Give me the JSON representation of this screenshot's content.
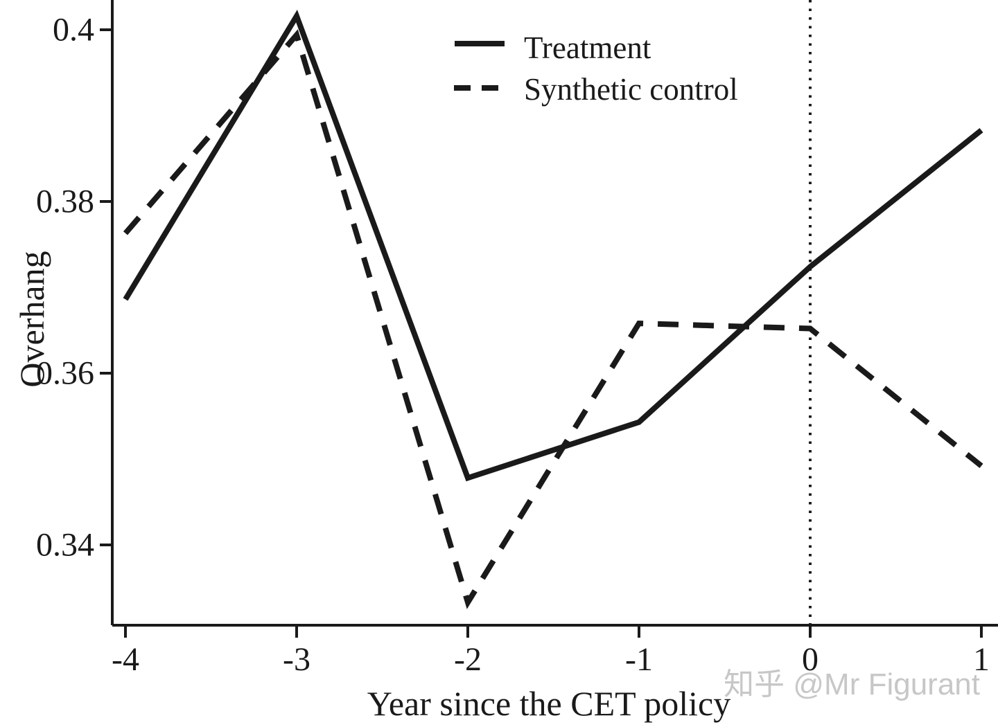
{
  "figure": {
    "watermark": "知乎 @Mr Figurant"
  },
  "colors": {
    "line": "#1a1a1a",
    "watermark": "#c7c7c7"
  },
  "chart_data": {
    "type": "line",
    "xlabel": "Year since the CET policy",
    "ylabel": "Overhang",
    "x": [
      -4,
      -3,
      -2,
      -1,
      0,
      1
    ],
    "xtick_labels": [
      "-4",
      "-3",
      "-2",
      "-1",
      "0",
      "1"
    ],
    "yticks": [
      0.34,
      0.36,
      0.38,
      0.4
    ],
    "ytick_labels": [
      "0.34",
      "0.36",
      "0.38",
      "0.4"
    ],
    "xlim": [
      -4.07,
      1.1
    ],
    "ylim": [
      0.3306,
      0.4035
    ],
    "grid": false,
    "legend_position": "top-center",
    "reference_line_x": 0,
    "reference_line_style": "dotted-vertical",
    "series": [
      {
        "name": "Treatment",
        "line_style": "solid",
        "values": [
          0.3686,
          0.4016,
          0.3478,
          0.3543,
          0.3724,
          0.3883
        ]
      },
      {
        "name": "Synthetic control",
        "line_style": "dashed",
        "values": [
          0.3763,
          0.3994,
          0.3333,
          0.3658,
          0.3652,
          0.3492
        ]
      }
    ]
  }
}
